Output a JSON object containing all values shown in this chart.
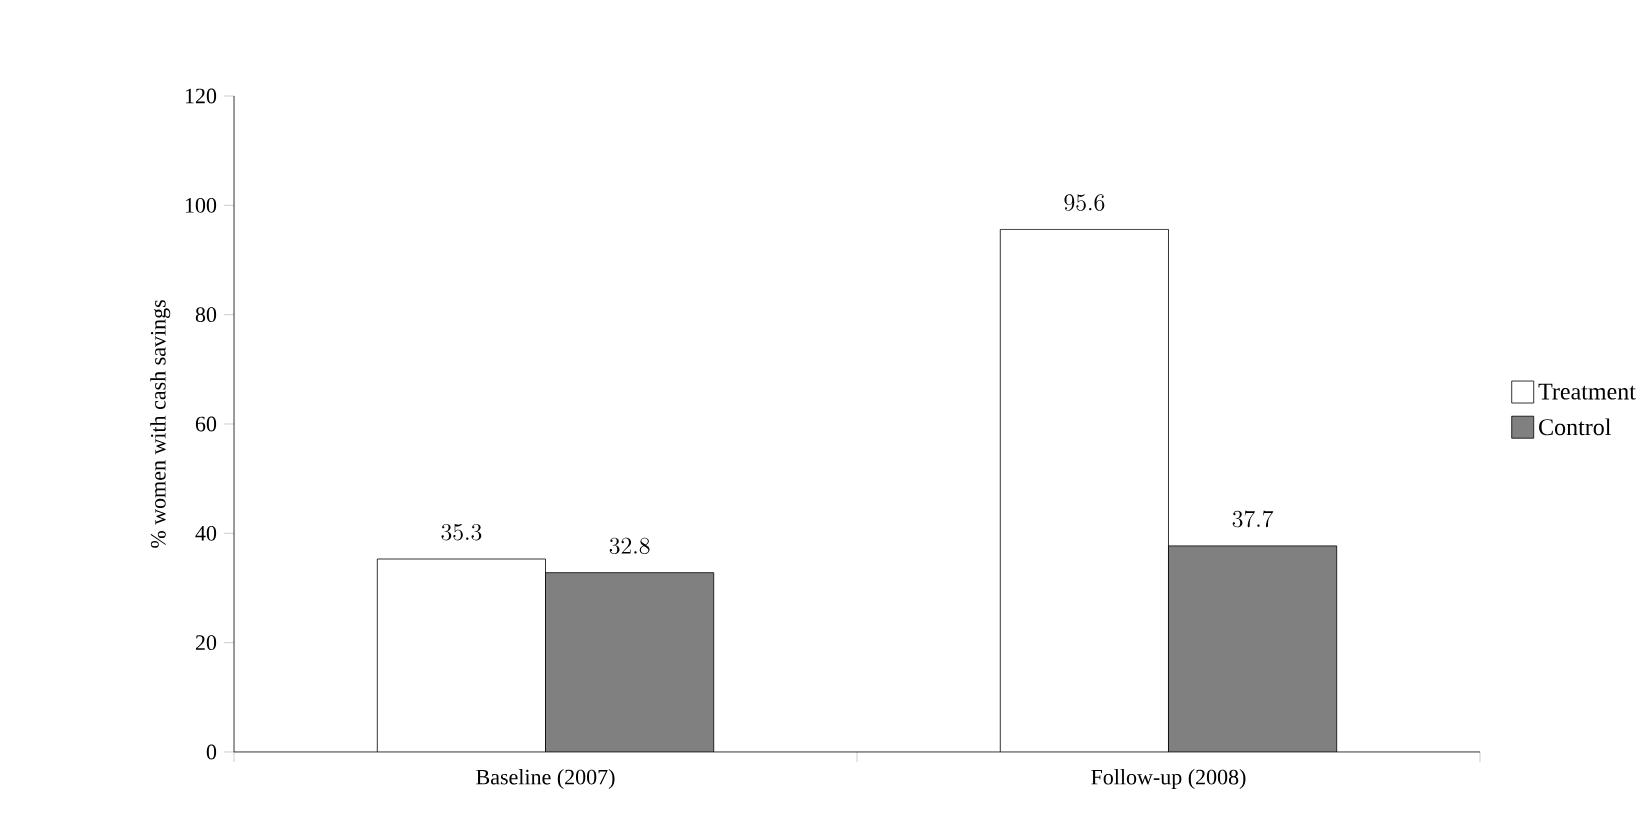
{
  "chart_data": {
    "type": "bar",
    "ylabel": "% women with cash savings",
    "categories": [
      "Baseline (2007)",
      "Follow-up (2008)"
    ],
    "series": [
      {
        "name": "Treatment",
        "color": "#ffffff",
        "values": [
          35.3,
          95.6
        ]
      },
      {
        "name": "Control",
        "color": "#808080",
        "values": [
          32.8,
          37.7
        ]
      }
    ],
    "ylim": [
      0,
      120
    ],
    "yticks": [
      0,
      20,
      40,
      60,
      80,
      100,
      120
    ],
    "data_labels": true,
    "legend": "right",
    "grid": false
  }
}
